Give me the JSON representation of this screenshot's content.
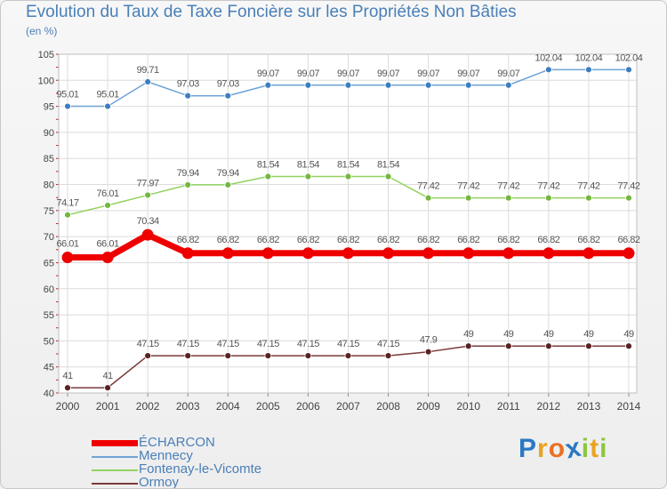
{
  "title": "Evolution du Taux de Taxe Foncière sur les Propriétés Non Bâties",
  "unit_label": "(en %)",
  "brand": "Proxiti",
  "brand_letters": [
    {
      "ch": "P",
      "color": "#2a79c4"
    },
    {
      "ch": "r",
      "color": "#e9a320"
    },
    {
      "ch": "o",
      "color": "#ec6f24"
    },
    {
      "ch": "x",
      "color": "#2a79c4"
    },
    {
      "ch": "i",
      "color": "#8cc63f"
    },
    {
      "ch": "t",
      "color": "#e9a320"
    },
    {
      "ch": "i",
      "color": "#8cc63f"
    }
  ],
  "chart_data": {
    "type": "line",
    "x": [
      "2000",
      "2001",
      "2002",
      "2003",
      "2004",
      "2005",
      "2006",
      "2007",
      "2008",
      "2009",
      "2010",
      "2011",
      "2012",
      "2013",
      "2014"
    ],
    "ylim": [
      40,
      105
    ],
    "yticks": [
      40,
      45,
      50,
      55,
      60,
      65,
      70,
      75,
      80,
      85,
      90,
      95,
      100,
      105
    ],
    "grid": true,
    "legend_position": "bottom-left",
    "series": [
      {
        "name": "ÉCHARCON",
        "color": "#ee0000",
        "marker_color": "#ee0000",
        "width": 7,
        "values": [
          66.01,
          66.01,
          70.34,
          66.82,
          66.82,
          66.82,
          66.82,
          66.82,
          66.82,
          66.82,
          66.82,
          66.82,
          66.82,
          66.82,
          66.82
        ],
        "labels": [
          "66.01",
          "66.01",
          "70.34",
          "66.82",
          "66.82",
          "66.82",
          "66.82",
          "66.82",
          "66.82",
          "66.82",
          "66.82",
          "66.82",
          "66.82",
          "66.82",
          "66.82"
        ]
      },
      {
        "name": "Mennecy",
        "color": "#6ea3d6",
        "marker_color": "#3c7fc0",
        "width": 1.5,
        "values": [
          95.01,
          95.01,
          99.71,
          97.03,
          97.03,
          99.07,
          99.07,
          99.07,
          99.07,
          99.07,
          99.07,
          99.07,
          102.04,
          102.04,
          102.04
        ],
        "labels": [
          "95.01",
          "95.01",
          "99.71",
          "97.03",
          "97.03",
          "99.07",
          "99.07",
          "99.07",
          "99.07",
          "99.07",
          "99.07",
          "99.07",
          "102.04",
          "102.04",
          "102.04"
        ]
      },
      {
        "name": "Fontenay-le-Vicomte",
        "color": "#93d25f",
        "marker_color": "#73b83e",
        "width": 1.5,
        "values": [
          74.17,
          76.01,
          77.97,
          79.94,
          79.94,
          81.54,
          81.54,
          81.54,
          81.54,
          77.42,
          77.42,
          77.42,
          77.42,
          77.42,
          77.42
        ],
        "labels": [
          "74.17",
          "76.01",
          "77.97",
          "79.94",
          "79.94",
          "81.54",
          "81.54",
          "81.54",
          "81.54",
          "77.42",
          "77.42",
          "77.42",
          "77.42",
          "77.42",
          "77.42"
        ]
      },
      {
        "name": "Ormoy",
        "color": "#7a3a3a",
        "marker_color": "#5a2222",
        "width": 1.5,
        "values": [
          41,
          41,
          47.15,
          47.15,
          47.15,
          47.15,
          47.15,
          47.15,
          47.15,
          47.9,
          49,
          49,
          49,
          49,
          49
        ],
        "labels": [
          "41",
          "41",
          "47.15",
          "47.15",
          "47.15",
          "47.15",
          "47.15",
          "47.15",
          "47.15",
          "47.9",
          "49",
          "49",
          "49",
          "49",
          "49"
        ]
      }
    ]
  }
}
